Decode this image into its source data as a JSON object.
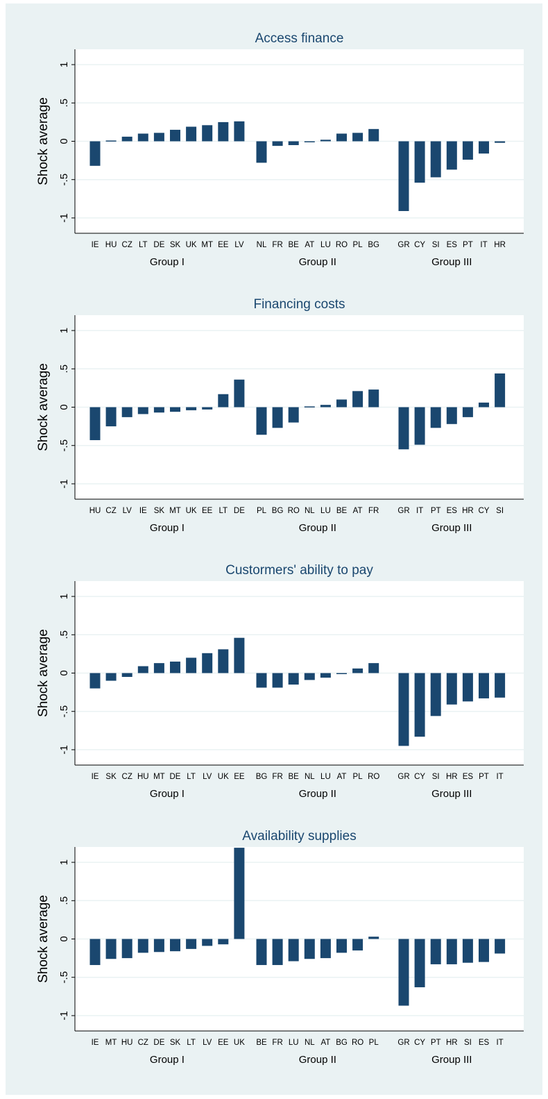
{
  "chart_data": [
    {
      "type": "bar",
      "title": "Access finance",
      "ylabel": "Shock average",
      "ylim": [
        -1.2,
        1.2
      ],
      "yticks": [
        1,
        0.5,
        0,
        -0.5,
        -1
      ],
      "ytick_labels": [
        "1",
        ".5",
        "0",
        "-.5",
        "-1"
      ],
      "grid": true,
      "bar_color": "#1a476f",
      "groups": [
        {
          "name": "Group I",
          "categories": [
            "IE",
            "HU",
            "CZ",
            "LT",
            "DE",
            "SK",
            "UK",
            "MT",
            "EE",
            "LV"
          ],
          "values": [
            -0.32,
            0.01,
            0.06,
            0.1,
            0.11,
            0.15,
            0.19,
            0.21,
            0.25,
            0.26
          ]
        },
        {
          "name": "Group II",
          "categories": [
            "NL",
            "FR",
            "BE",
            "AT",
            "LU",
            "RO",
            "PL",
            "BG"
          ],
          "values": [
            -0.28,
            -0.06,
            -0.05,
            -0.01,
            0.02,
            0.1,
            0.11,
            0.16
          ]
        },
        {
          "name": "Group III",
          "categories": [
            "GR",
            "CY",
            "SI",
            "ES",
            "PT",
            "IT",
            "HR"
          ],
          "values": [
            -0.91,
            -0.54,
            -0.47,
            -0.37,
            -0.24,
            -0.16,
            -0.02
          ]
        }
      ]
    },
    {
      "type": "bar",
      "title": "Financing costs",
      "ylabel": "Shock average",
      "ylim": [
        -1.2,
        1.2
      ],
      "yticks": [
        1,
        0.5,
        0,
        -0.5,
        -1
      ],
      "ytick_labels": [
        "1",
        ".5",
        "0",
        "-.5",
        "-1"
      ],
      "grid": true,
      "bar_color": "#1a476f",
      "groups": [
        {
          "name": "Group I",
          "categories": [
            "HU",
            "CZ",
            "LV",
            "IE",
            "SK",
            "MT",
            "UK",
            "EE",
            "LT",
            "DE"
          ],
          "values": [
            -0.43,
            -0.25,
            -0.13,
            -0.09,
            -0.07,
            -0.06,
            -0.04,
            -0.03,
            0.17,
            0.36
          ]
        },
        {
          "name": "Group II",
          "categories": [
            "PL",
            "BG",
            "RO",
            "NL",
            "LU",
            "BE",
            "AT",
            "FR"
          ],
          "values": [
            -0.36,
            -0.27,
            -0.2,
            0.01,
            0.03,
            0.1,
            0.21,
            0.23
          ]
        },
        {
          "name": "Group III",
          "categories": [
            "GR",
            "IT",
            "PT",
            "ES",
            "HR",
            "CY",
            "SI"
          ],
          "values": [
            -0.55,
            -0.49,
            -0.27,
            -0.22,
            -0.13,
            0.06,
            0.44
          ]
        }
      ]
    },
    {
      "type": "bar",
      "title": "Custormers' ability to pay",
      "ylabel": "Shock average",
      "ylim": [
        -1.2,
        1.2
      ],
      "yticks": [
        1,
        0.5,
        0,
        -0.5,
        -1
      ],
      "ytick_labels": [
        "1",
        ".5",
        "0",
        "-.5",
        "-1"
      ],
      "grid": true,
      "bar_color": "#1a476f",
      "groups": [
        {
          "name": "Group I",
          "categories": [
            "IE",
            "SK",
            "CZ",
            "HU",
            "MT",
            "DE",
            "LT",
            "LV",
            "UK",
            "EE"
          ],
          "values": [
            -0.2,
            -0.1,
            -0.05,
            0.09,
            0.13,
            0.15,
            0.2,
            0.26,
            0.31,
            0.46
          ]
        },
        {
          "name": "Group II",
          "categories": [
            "BG",
            "FR",
            "BE",
            "NL",
            "LU",
            "AT",
            "PL",
            "RO"
          ],
          "values": [
            -0.19,
            -0.19,
            -0.15,
            -0.09,
            -0.06,
            -0.01,
            0.06,
            0.13
          ]
        },
        {
          "name": "Group III",
          "categories": [
            "GR",
            "CY",
            "SI",
            "HR",
            "ES",
            "PT",
            "IT"
          ],
          "values": [
            -0.95,
            -0.83,
            -0.56,
            -0.41,
            -0.37,
            -0.33,
            -0.32
          ]
        }
      ]
    },
    {
      "type": "bar",
      "title": "Availability supplies",
      "ylabel": "Shock average",
      "ylim": [
        -1.2,
        1.2
      ],
      "yticks": [
        1,
        0.5,
        0,
        -0.5,
        -1
      ],
      "ytick_labels": [
        "1",
        ".5",
        "0",
        "-.5",
        "-1"
      ],
      "grid": true,
      "bar_color": "#1a476f",
      "groups": [
        {
          "name": "Group I",
          "categories": [
            "IE",
            "MT",
            "HU",
            "CZ",
            "DE",
            "SK",
            "LT",
            "LV",
            "EE",
            "UK"
          ],
          "values": [
            -0.34,
            -0.26,
            -0.25,
            -0.18,
            -0.17,
            -0.16,
            -0.13,
            -0.09,
            -0.07,
            1.19
          ]
        },
        {
          "name": "Group II",
          "categories": [
            "BE",
            "FR",
            "LU",
            "NL",
            "AT",
            "BG",
            "RO",
            "PL"
          ],
          "values": [
            -0.34,
            -0.34,
            -0.29,
            -0.26,
            -0.25,
            -0.18,
            -0.15,
            0.03
          ]
        },
        {
          "name": "Group III",
          "categories": [
            "GR",
            "CY",
            "PT",
            "HR",
            "SI",
            "ES",
            "IT"
          ],
          "values": [
            -0.87,
            -0.63,
            -0.33,
            -0.33,
            -0.31,
            -0.3,
            -0.19
          ]
        }
      ]
    }
  ]
}
